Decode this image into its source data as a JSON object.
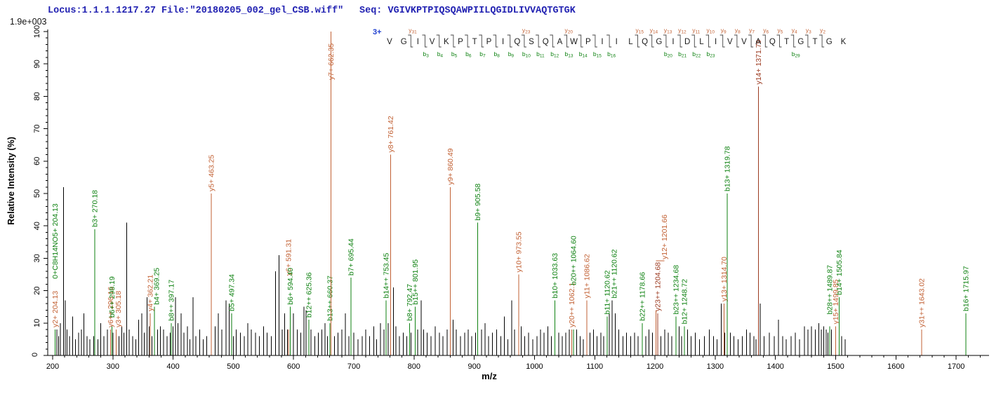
{
  "header": {
    "locus_file": "Locus:1.1.1.1217.27 File:\"20180205_002_gel_CSB.wiff\"",
    "seq_prefix": "Seq: ",
    "sequence": "VGIVKPTPIQSQAWPIILQGIDLIVVAQTGTGK"
  },
  "colors": {
    "header_text": "#2222b2",
    "y_ion": "#c26134",
    "y_ion_dark": "#9c3a20",
    "b_ion": "#0f8212",
    "peak": "#000000",
    "axis": "#000000",
    "charge_blue": "#1f3fd0",
    "residue": "#1a1a1a"
  },
  "ladder": {
    "charge_label": "3+",
    "residues": [
      "V",
      "G",
      "I",
      "V",
      "K",
      "P",
      "T",
      "P",
      "I",
      "Q",
      "S",
      "Q",
      "A",
      "W",
      "P",
      "I",
      "I",
      "L",
      "Q",
      "G",
      "I",
      "D",
      "L",
      "I",
      "V",
      "V",
      "A",
      "Q",
      "T",
      "G",
      "T",
      "G",
      "K"
    ],
    "cleavages": [
      {
        "after": 2,
        "y": "y31"
      },
      {
        "after": 3,
        "b": "b3"
      },
      {
        "after": 4,
        "b": "b4"
      },
      {
        "after": 5,
        "b": "b5"
      },
      {
        "after": 6,
        "b": "b6"
      },
      {
        "after": 7,
        "b": "b7"
      },
      {
        "after": 8,
        "b": "b8"
      },
      {
        "after": 9,
        "b": "b9"
      },
      {
        "after": 10,
        "y": "y23",
        "b": "b10"
      },
      {
        "after": 11,
        "b": "b11"
      },
      {
        "after": 12,
        "b": "b12"
      },
      {
        "after": 13,
        "y": "y20",
        "b": "b13"
      },
      {
        "after": 14,
        "b": "b14"
      },
      {
        "after": 15,
        "b": "b15"
      },
      {
        "after": 16,
        "b": "b16"
      },
      {
        "after": 18,
        "y": "y15"
      },
      {
        "after": 19,
        "y": "y14"
      },
      {
        "after": 20,
        "y": "y13",
        "b": "b20"
      },
      {
        "after": 21,
        "y": "y12",
        "b": "b21"
      },
      {
        "after": 22,
        "y": "y11",
        "b": "b22"
      },
      {
        "after": 23,
        "y": "y10",
        "b": "b23"
      },
      {
        "after": 24,
        "y": "y9"
      },
      {
        "after": 25,
        "y": "y8"
      },
      {
        "after": 26,
        "y": "y7"
      },
      {
        "after": 27,
        "y": "y6"
      },
      {
        "after": 28,
        "y": "y5"
      },
      {
        "after": 29,
        "y": "y4",
        "b": "b29"
      },
      {
        "after": 30,
        "y": "y3"
      },
      {
        "after": 31,
        "y": "y2"
      }
    ]
  },
  "chart_data": {
    "type": "bar",
    "subtype": "ms2-spectrum-stick-plot",
    "title": "",
    "xlabel": "m/z",
    "ylabel": "Relative  Intensity (%)",
    "y_scale_note": "1.9e+003",
    "xlim": [
      200,
      1750
    ],
    "ylim": [
      0,
      100
    ],
    "x_tick_step": 100,
    "x_minor_step": 20,
    "y_tick_step": 10,
    "y_minor_step": 2,
    "grid": false,
    "legend": "none",
    "annotated_peaks": [
      {
        "mz": 204.13,
        "pct": 8,
        "series": "y",
        "text": "y2+ 204.13"
      },
      {
        "mz": 204.13,
        "pct": 8,
        "series": "b",
        "text": "0+C8H14NO5+ 204.13",
        "rise": 15
      },
      {
        "mz": 270.18,
        "pct": 39,
        "series": "b",
        "text": "b3+ 270.18"
      },
      {
        "mz": 296.16,
        "pct": 8,
        "series": "y",
        "text": "y6++ 296.16"
      },
      {
        "mz": 298.19,
        "pct": 9,
        "series": "b",
        "text": "b6++ 298.19",
        "rise": 2
      },
      {
        "mz": 305.18,
        "pct": 8,
        "series": "y",
        "text": "y3+ 305.18",
        "dx": 3
      },
      {
        "mz": 362.21,
        "pct": 13,
        "series": "y",
        "text": "y4+ 362.21"
      },
      {
        "mz": 369.25,
        "pct": 15,
        "series": "b",
        "text": "b4+ 369.25",
        "dx": 3
      },
      {
        "mz": 397.17,
        "pct": 10,
        "series": "b",
        "text": "b8++ 397.17"
      },
      {
        "mz": 463.25,
        "pct": 50,
        "series": "y",
        "text": "y5+ 463.25"
      },
      {
        "mz": 497.34,
        "pct": 13,
        "series": "b",
        "text": "b5+ 497.34"
      },
      {
        "mz": 591.31,
        "pct": 8,
        "series": "y",
        "text": "y6+ 591.31",
        "rise": 16
      },
      {
        "mz": 594.4,
        "pct": 15,
        "series": "b",
        "text": "b6+ 594.40"
      },
      {
        "mz": 625.36,
        "pct": 11,
        "series": "b",
        "text": "b12++ 625.36"
      },
      {
        "mz": 660.37,
        "pct": 10,
        "series": "b",
        "text": "b13++ 660.37"
      },
      {
        "mz": 662.35,
        "pct": 100,
        "series": "y",
        "text": "y7+ 662.35",
        "drop": 72
      },
      {
        "mz": 695.44,
        "pct": 24,
        "series": "b",
        "text": "b7+ 695.44"
      },
      {
        "mz": 753.45,
        "pct": 17,
        "series": "b",
        "text": "b14++ 753.45"
      },
      {
        "mz": 761.42,
        "pct": 62,
        "series": "y",
        "text": "y8+ 761.42"
      },
      {
        "mz": 792.47,
        "pct": 10,
        "series": "b",
        "text": "b8+ 792.47"
      },
      {
        "mz": 801.95,
        "pct": 15,
        "series": "b",
        "text": "b15++ 801.95"
      },
      {
        "mz": 860.49,
        "pct": 52,
        "series": "y",
        "text": "y9+ 860.49"
      },
      {
        "mz": 905.58,
        "pct": 41,
        "series": "b",
        "text": "b9+ 905.58"
      },
      {
        "mz": 973.55,
        "pct": 25,
        "series": "y",
        "text": "y10+ 973.55"
      },
      {
        "mz": 1033.63,
        "pct": 17,
        "series": "b",
        "text": "b10+ 1033.63"
      },
      {
        "mz": 1062.1,
        "pct": 8,
        "series": "y",
        "text": "y20++ 1062.1"
      },
      {
        "mz": 1064.6,
        "pct": 8,
        "series": "b",
        "text": "b20++ 1064.60",
        "rise": 13
      },
      {
        "mz": 1086.62,
        "pct": 17,
        "series": "y",
        "text": "y11+ 1086.62"
      },
      {
        "mz": 1120.62,
        "pct": 12,
        "series": "b",
        "text": "b11+ 1120.62"
      },
      {
        "mz": 1120.62,
        "pct": 12,
        "series": "b",
        "text": "b21++ 1120.62",
        "dx": 10,
        "rise": 5
      },
      {
        "mz": 1178.66,
        "pct": 10,
        "series": "b",
        "text": "b22++ 1178.66"
      },
      {
        "mz": 1201.66,
        "pct": 14,
        "series": "y",
        "text": "y12+ 1201.66",
        "rise": 15,
        "dx": 12,
        "connector": true
      },
      {
        "mz": 1204.68,
        "pct": 13,
        "series": "y",
        "text": "y23++ 1204.68",
        "dark": true
      },
      {
        "mz": 1234.68,
        "pct": 12,
        "series": "b",
        "text": "b23++ 1234.68"
      },
      {
        "mz": 1248.72,
        "pct": 9,
        "series": "b",
        "text": "b12+ 1248.72"
      },
      {
        "mz": 1314.7,
        "pct": 16,
        "series": "y",
        "text": "y13+ 1314.70"
      },
      {
        "mz": 1319.78,
        "pct": 50,
        "series": "b",
        "text": "b13+ 1319.78"
      },
      {
        "mz": 1371.79,
        "pct": 83,
        "series": "y",
        "text": "y14+ 1371.79",
        "dark": true
      },
      {
        "mz": 1489.87,
        "pct": 9,
        "series": "b",
        "text": "b28++ 1489.87",
        "rise": 3
      },
      {
        "mz": 1499.85,
        "pct": 9,
        "series": "y",
        "text": "y15+ 1499.85"
      },
      {
        "mz": 1505.84,
        "pct": 18,
        "series": "b",
        "text": "b14+ 1505.84"
      },
      {
        "mz": 1643.02,
        "pct": 8,
        "series": "y",
        "text": "y31++ 1643.02"
      },
      {
        "mz": 1715.97,
        "pct": 13,
        "series": "b",
        "text": "b16+ 1715.97"
      }
    ],
    "background_peaks": [
      [
        207,
        8
      ],
      [
        210,
        6
      ],
      [
        213,
        10
      ],
      [
        218,
        52
      ],
      [
        221,
        17
      ],
      [
        224,
        8
      ],
      [
        228,
        6
      ],
      [
        233,
        12
      ],
      [
        238,
        5
      ],
      [
        243,
        7
      ],
      [
        248,
        8
      ],
      [
        252,
        13
      ],
      [
        257,
        6
      ],
      [
        262,
        5
      ],
      [
        268,
        6
      ],
      [
        275,
        5
      ],
      [
        280,
        10
      ],
      [
        285,
        6
      ],
      [
        291,
        8
      ],
      [
        300,
        7
      ],
      [
        310,
        6
      ],
      [
        315,
        9
      ],
      [
        318,
        7
      ],
      [
        323,
        41
      ],
      [
        327,
        8
      ],
      [
        333,
        6
      ],
      [
        338,
        5
      ],
      [
        343,
        11
      ],
      [
        348,
        13
      ],
      [
        352,
        7
      ],
      [
        357,
        18
      ],
      [
        360,
        9
      ],
      [
        365,
        6
      ],
      [
        374,
        8
      ],
      [
        379,
        9
      ],
      [
        384,
        8
      ],
      [
        390,
        6
      ],
      [
        395,
        7
      ],
      [
        400,
        9
      ],
      [
        404,
        18
      ],
      [
        408,
        10
      ],
      [
        413,
        13
      ],
      [
        418,
        7
      ],
      [
        424,
        9
      ],
      [
        428,
        5
      ],
      [
        433,
        18
      ],
      [
        438,
        6
      ],
      [
        444,
        8
      ],
      [
        450,
        5
      ],
      [
        456,
        6
      ],
      [
        470,
        9
      ],
      [
        475,
        13
      ],
      [
        481,
        8
      ],
      [
        488,
        17
      ],
      [
        493,
        16
      ],
      [
        500,
        6
      ],
      [
        505,
        8
      ],
      [
        512,
        7
      ],
      [
        518,
        6
      ],
      [
        524,
        10
      ],
      [
        530,
        8
      ],
      [
        537,
        7
      ],
      [
        543,
        6
      ],
      [
        550,
        9
      ],
      [
        556,
        7
      ],
      [
        563,
        6
      ],
      [
        570,
        26
      ],
      [
        576,
        31
      ],
      [
        581,
        8
      ],
      [
        585,
        13
      ],
      [
        590,
        8
      ],
      [
        600,
        13
      ],
      [
        606,
        8
      ],
      [
        612,
        7
      ],
      [
        617,
        15
      ],
      [
        621,
        14
      ],
      [
        629,
        8
      ],
      [
        635,
        6
      ],
      [
        641,
        7
      ],
      [
        647,
        8
      ],
      [
        652,
        10
      ],
      [
        656,
        6
      ],
      [
        668,
        6
      ],
      [
        674,
        7
      ],
      [
        680,
        8
      ],
      [
        686,
        13
      ],
      [
        692,
        6
      ],
      [
        700,
        7
      ],
      [
        707,
        5
      ],
      [
        714,
        6
      ],
      [
        720,
        8
      ],
      [
        726,
        6
      ],
      [
        733,
        9
      ],
      [
        738,
        5
      ],
      [
        744,
        10
      ],
      [
        750,
        8
      ],
      [
        757,
        10
      ],
      [
        766,
        21
      ],
      [
        770,
        9
      ],
      [
        776,
        6
      ],
      [
        782,
        7
      ],
      [
        788,
        6
      ],
      [
        795,
        7
      ],
      [
        806,
        8
      ],
      [
        812,
        17
      ],
      [
        816,
        8
      ],
      [
        822,
        7
      ],
      [
        828,
        6
      ],
      [
        835,
        9
      ],
      [
        842,
        7
      ],
      [
        848,
        6
      ],
      [
        855,
        8
      ],
      [
        865,
        11
      ],
      [
        870,
        8
      ],
      [
        877,
        6
      ],
      [
        884,
        7
      ],
      [
        890,
        8
      ],
      [
        896,
        6
      ],
      [
        902,
        7
      ],
      [
        912,
        8
      ],
      [
        918,
        10
      ],
      [
        924,
        6
      ],
      [
        930,
        7
      ],
      [
        937,
        8
      ],
      [
        944,
        6
      ],
      [
        950,
        12
      ],
      [
        956,
        5
      ],
      [
        962,
        17
      ],
      [
        967,
        8
      ],
      [
        978,
        9
      ],
      [
        984,
        6
      ],
      [
        990,
        7
      ],
      [
        997,
        5
      ],
      [
        1004,
        6
      ],
      [
        1010,
        8
      ],
      [
        1016,
        7
      ],
      [
        1022,
        9
      ],
      [
        1028,
        6
      ],
      [
        1040,
        7
      ],
      [
        1046,
        6
      ],
      [
        1052,
        7
      ],
      [
        1058,
        8
      ],
      [
        1070,
        8
      ],
      [
        1076,
        6
      ],
      [
        1081,
        5
      ],
      [
        1092,
        7
      ],
      [
        1098,
        8
      ],
      [
        1104,
        6
      ],
      [
        1110,
        7
      ],
      [
        1115,
        6
      ],
      [
        1124,
        13
      ],
      [
        1129,
        17
      ],
      [
        1134,
        13
      ],
      [
        1140,
        8
      ],
      [
        1147,
        6
      ],
      [
        1153,
        7
      ],
      [
        1160,
        6
      ],
      [
        1166,
        7
      ],
      [
        1172,
        6
      ],
      [
        1185,
        6
      ],
      [
        1190,
        8
      ],
      [
        1196,
        7
      ],
      [
        1210,
        6
      ],
      [
        1216,
        8
      ],
      [
        1222,
        7
      ],
      [
        1228,
        6
      ],
      [
        1240,
        9
      ],
      [
        1244,
        6
      ],
      [
        1254,
        8
      ],
      [
        1260,
        6
      ],
      [
        1267,
        7
      ],
      [
        1274,
        5
      ],
      [
        1282,
        6
      ],
      [
        1290,
        8
      ],
      [
        1297,
        6
      ],
      [
        1303,
        5
      ],
      [
        1310,
        16
      ],
      [
        1316,
        7
      ],
      [
        1325,
        7
      ],
      [
        1331,
        6
      ],
      [
        1338,
        5
      ],
      [
        1345,
        6
      ],
      [
        1352,
        8
      ],
      [
        1358,
        7
      ],
      [
        1364,
        6
      ],
      [
        1368,
        5
      ],
      [
        1375,
        16
      ],
      [
        1381,
        6
      ],
      [
        1390,
        7
      ],
      [
        1398,
        6
      ],
      [
        1405,
        11
      ],
      [
        1412,
        6
      ],
      [
        1418,
        5
      ],
      [
        1426,
        6
      ],
      [
        1433,
        7
      ],
      [
        1440,
        5
      ],
      [
        1448,
        9
      ],
      [
        1454,
        8
      ],
      [
        1460,
        9
      ],
      [
        1466,
        8
      ],
      [
        1472,
        10
      ],
      [
        1476,
        8
      ],
      [
        1480,
        9
      ],
      [
        1484,
        8
      ],
      [
        1487,
        7
      ],
      [
        1493,
        8
      ],
      [
        1510,
        6
      ],
      [
        1516,
        5
      ]
    ]
  }
}
